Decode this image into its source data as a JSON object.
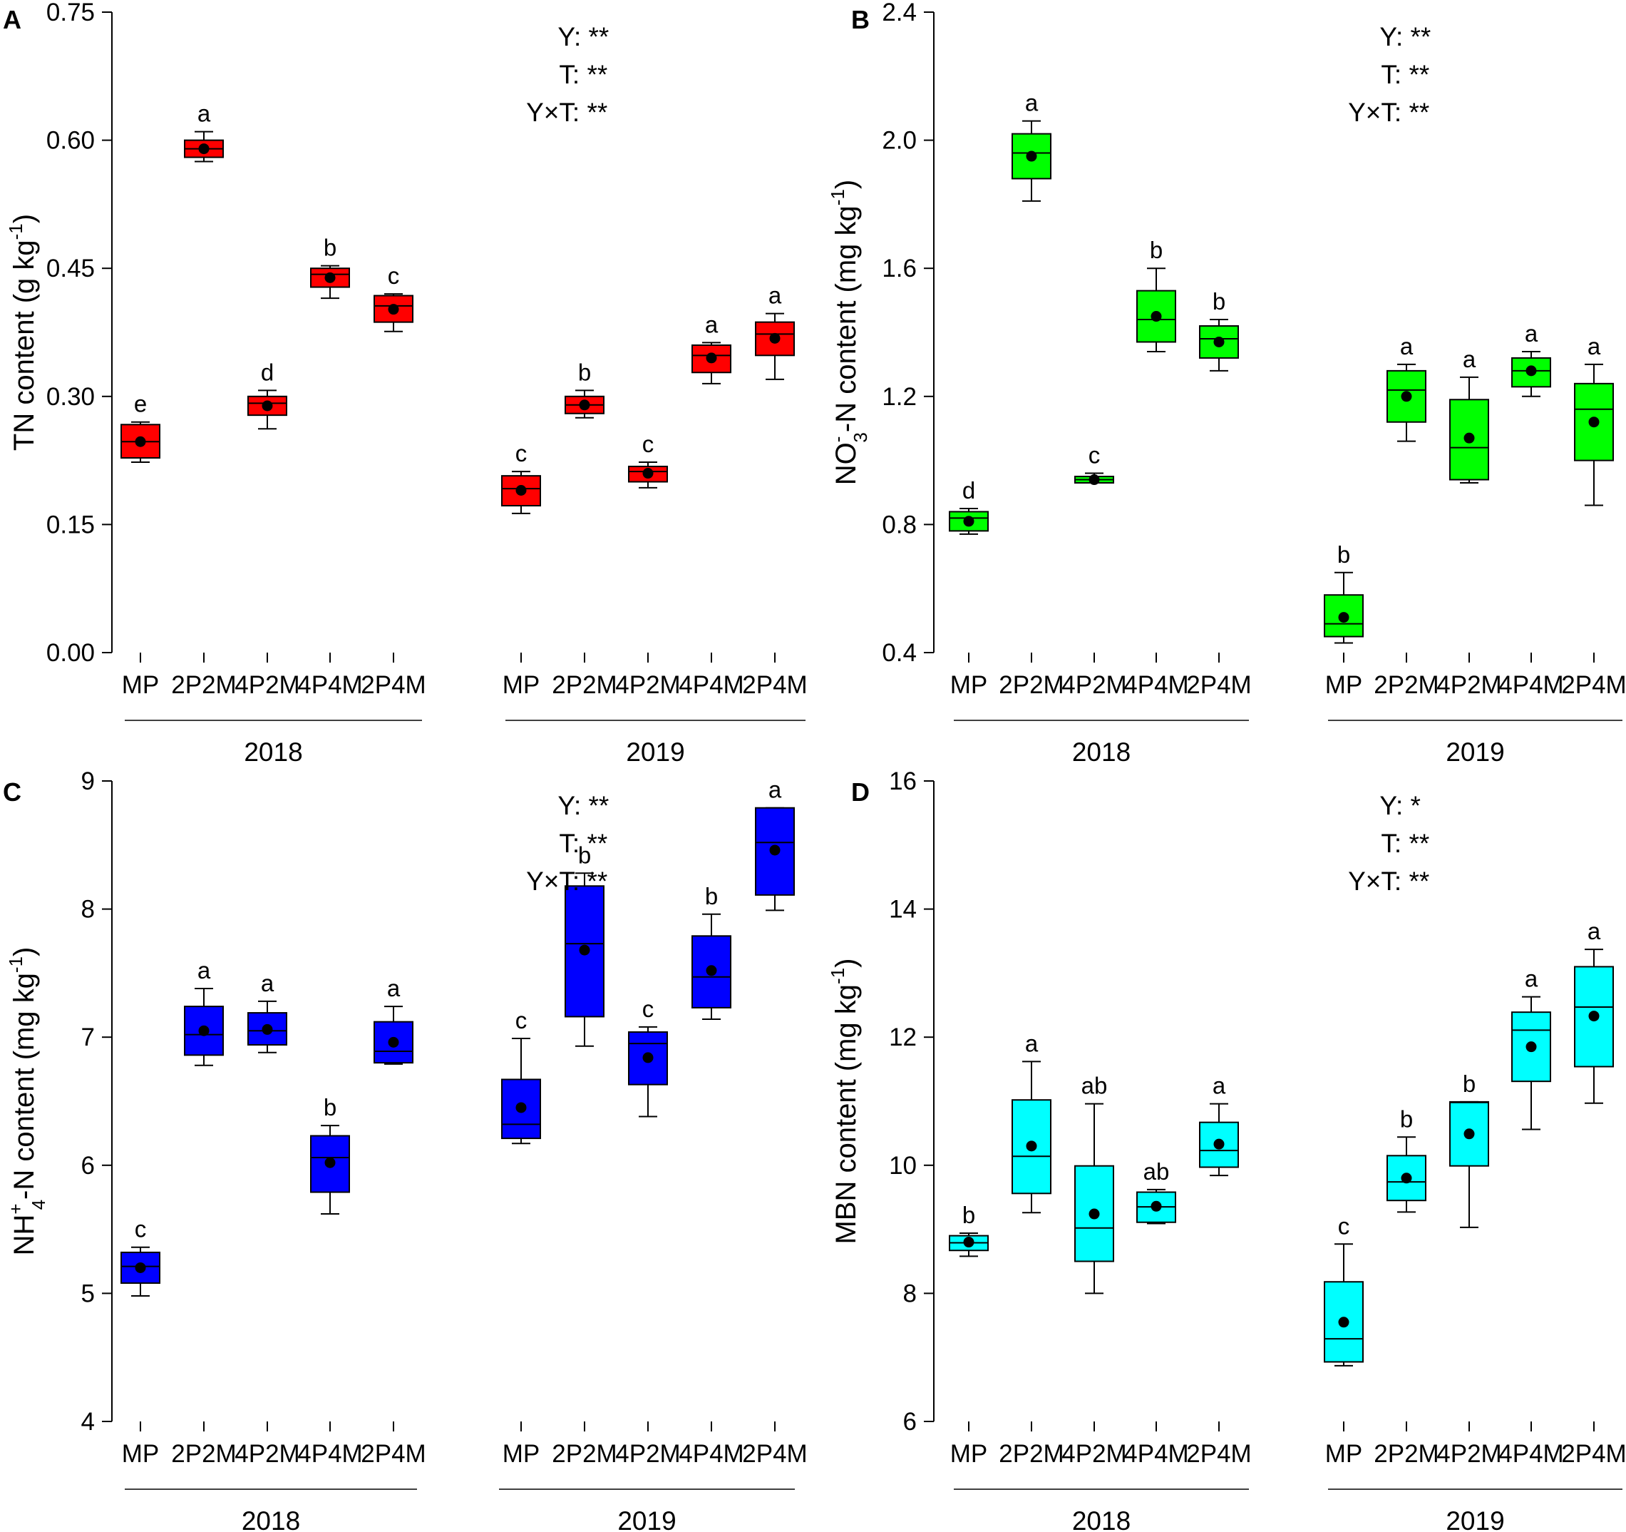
{
  "figure": {
    "colors": {
      "A": "#ff0000",
      "B": "#00ff00",
      "C": "#0000ff",
      "D": "#00ffff"
    },
    "marker_color": "#000000"
  },
  "chart_data": [
    {
      "panel": "A",
      "type": "box",
      "ylabel": "TN content (g kg-1)",
      "ylabel_parts": {
        "main": "TN content (g kg",
        "sup": "-1",
        "end": ")"
      },
      "ylim": [
        0,
        0.75
      ],
      "yticks": [
        0,
        0.15,
        0.3,
        0.45,
        0.6,
        0.75
      ],
      "ytick_labels": [
        "0.00",
        "0.15",
        "0.30",
        "0.45",
        "0.60",
        "0.75"
      ],
      "groups": [
        {
          "year": "2018",
          "categories": [
            "MP",
            "2P2M",
            "4P2M",
            "4P4M",
            "2P4M"
          ]
        },
        {
          "year": "2019",
          "categories": [
            "MP",
            "2P2M",
            "4P2M",
            "4P4M",
            "2P4M"
          ]
        }
      ],
      "boxes": [
        {
          "group": 0,
          "category": "MP",
          "whisker_low": 0.223,
          "q1": 0.228,
          "median": 0.247,
          "q3": 0.267,
          "whisker_high": 0.27,
          "mean": 0.247,
          "letter": "e"
        },
        {
          "group": 0,
          "category": "2P2M",
          "whisker_low": 0.575,
          "q1": 0.58,
          "median": 0.59,
          "q3": 0.6,
          "whisker_high": 0.61,
          "mean": 0.59,
          "letter": "a"
        },
        {
          "group": 0,
          "category": "4P2M",
          "whisker_low": 0.262,
          "q1": 0.278,
          "median": 0.292,
          "q3": 0.3,
          "whisker_high": 0.307,
          "mean": 0.289,
          "letter": "d"
        },
        {
          "group": 0,
          "category": "4P4M",
          "whisker_low": 0.415,
          "q1": 0.428,
          "median": 0.443,
          "q3": 0.45,
          "whisker_high": 0.453,
          "mean": 0.439,
          "letter": "b"
        },
        {
          "group": 0,
          "category": "2P4M",
          "whisker_low": 0.376,
          "q1": 0.387,
          "median": 0.406,
          "q3": 0.418,
          "whisker_high": 0.42,
          "mean": 0.402,
          "letter": "c"
        },
        {
          "group": 1,
          "category": "MP",
          "whisker_low": 0.163,
          "q1": 0.172,
          "median": 0.192,
          "q3": 0.207,
          "whisker_high": 0.212,
          "mean": 0.19,
          "letter": "c"
        },
        {
          "group": 1,
          "category": "2P2M",
          "whisker_low": 0.275,
          "q1": 0.28,
          "median": 0.29,
          "q3": 0.3,
          "whisker_high": 0.307,
          "mean": 0.29,
          "letter": "b"
        },
        {
          "group": 1,
          "category": "4P2M",
          "whisker_low": 0.193,
          "q1": 0.2,
          "median": 0.212,
          "q3": 0.218,
          "whisker_high": 0.223,
          "mean": 0.21,
          "letter": "c"
        },
        {
          "group": 1,
          "category": "4P4M",
          "whisker_low": 0.315,
          "q1": 0.328,
          "median": 0.348,
          "q3": 0.36,
          "whisker_high": 0.363,
          "mean": 0.345,
          "letter": "a"
        },
        {
          "group": 1,
          "category": "2P4M",
          "whisker_low": 0.32,
          "q1": 0.348,
          "median": 0.373,
          "q3": 0.387,
          "whisker_high": 0.397,
          "mean": 0.368,
          "letter": "a"
        }
      ],
      "stats": [
        "Y: **",
        "T: **",
        "Y×T: **"
      ]
    },
    {
      "panel": "B",
      "type": "box",
      "ylabel": "NO3--N content (mg kg-1)",
      "ylabel_parts": {
        "pre": "NO",
        "sub": "3",
        "sup": "-",
        "main": "-N content (mg kg",
        "sup2": "-1",
        "end": ")"
      },
      "ylim": [
        0.4,
        2.4
      ],
      "yticks": [
        0.4,
        0.8,
        1.2,
        1.6,
        2.0,
        2.4
      ],
      "ytick_labels": [
        "0.4",
        "0.8",
        "1.2",
        "1.6",
        "2.0",
        "2.4"
      ],
      "groups": [
        {
          "year": "2018",
          "categories": [
            "MP",
            "2P2M",
            "4P2M",
            "4P4M",
            "2P4M"
          ]
        },
        {
          "year": "2019",
          "categories": [
            "MP",
            "2P2M",
            "4P2M",
            "4P4M",
            "2P4M"
          ]
        }
      ],
      "boxes": [
        {
          "group": 0,
          "category": "MP",
          "whisker_low": 0.77,
          "q1": 0.78,
          "median": 0.82,
          "q3": 0.84,
          "whisker_high": 0.85,
          "mean": 0.81,
          "letter": "d"
        },
        {
          "group": 0,
          "category": "2P2M",
          "whisker_low": 1.81,
          "q1": 1.88,
          "median": 1.96,
          "q3": 2.02,
          "whisker_high": 2.06,
          "mean": 1.95,
          "letter": "a"
        },
        {
          "group": 0,
          "category": "4P2M",
          "whisker_low": 0.93,
          "q1": 0.93,
          "median": 0.94,
          "q3": 0.95,
          "whisker_high": 0.96,
          "mean": 0.94,
          "letter": "c"
        },
        {
          "group": 0,
          "category": "4P4M",
          "whisker_low": 1.34,
          "q1": 1.37,
          "median": 1.44,
          "q3": 1.53,
          "whisker_high": 1.6,
          "mean": 1.45,
          "letter": "b"
        },
        {
          "group": 0,
          "category": "2P4M",
          "whisker_low": 1.28,
          "q1": 1.32,
          "median": 1.38,
          "q3": 1.42,
          "whisker_high": 1.44,
          "mean": 1.37,
          "letter": "b"
        },
        {
          "group": 1,
          "category": "MP",
          "whisker_low": 0.43,
          "q1": 0.45,
          "median": 0.49,
          "q3": 0.58,
          "whisker_high": 0.65,
          "mean": 0.51,
          "letter": "b"
        },
        {
          "group": 1,
          "category": "2P2M",
          "whisker_low": 1.06,
          "q1": 1.12,
          "median": 1.22,
          "q3": 1.28,
          "whisker_high": 1.3,
          "mean": 1.2,
          "letter": "a"
        },
        {
          "group": 1,
          "category": "4P2M",
          "whisker_low": 0.93,
          "q1": 0.94,
          "median": 1.04,
          "q3": 1.19,
          "whisker_high": 1.26,
          "mean": 1.07,
          "letter": "a"
        },
        {
          "group": 1,
          "category": "4P4M",
          "whisker_low": 1.2,
          "q1": 1.23,
          "median": 1.28,
          "q3": 1.32,
          "whisker_high": 1.34,
          "mean": 1.28,
          "letter": "a"
        },
        {
          "group": 1,
          "category": "2P4M",
          "whisker_low": 0.86,
          "q1": 1.0,
          "median": 1.16,
          "q3": 1.24,
          "whisker_high": 1.3,
          "mean": 1.12,
          "letter": "a"
        }
      ],
      "stats": [
        "Y: **",
        "T: **",
        "Y×T: **"
      ]
    },
    {
      "panel": "C",
      "type": "box",
      "ylabel": "NH4+-N content (mg kg-1)",
      "ylabel_parts": {
        "pre": "NH",
        "sub": "4",
        "sup": "+",
        "main": "-N content (mg kg",
        "sup2": "-1",
        "end": ")"
      },
      "ylim": [
        4,
        9
      ],
      "yticks": [
        4,
        5,
        6,
        7,
        8,
        9
      ],
      "ytick_labels": [
        "4",
        "5",
        "6",
        "7",
        "8",
        "9"
      ],
      "groups": [
        {
          "year": "2018",
          "categories": [
            "MP",
            "2P2M",
            "4P2M",
            "4P4M",
            "2P4M"
          ]
        },
        {
          "year": "2019",
          "categories": [
            "MP",
            "2P2M",
            "4P2M",
            "4P4M",
            "2P4M"
          ]
        }
      ],
      "boxes": [
        {
          "group": 0,
          "category": "MP",
          "whisker_low": 4.98,
          "q1": 5.08,
          "median": 5.21,
          "q3": 5.32,
          "whisker_high": 5.36,
          "mean": 5.2,
          "letter": "c"
        },
        {
          "group": 0,
          "category": "2P2M",
          "whisker_low": 6.78,
          "q1": 6.86,
          "median": 7.02,
          "q3": 7.24,
          "whisker_high": 7.38,
          "mean": 7.05,
          "letter": "a"
        },
        {
          "group": 0,
          "category": "4P2M",
          "whisker_low": 6.88,
          "q1": 6.94,
          "median": 7.05,
          "q3": 7.19,
          "whisker_high": 7.28,
          "mean": 7.06,
          "letter": "a"
        },
        {
          "group": 0,
          "category": "4P4M",
          "whisker_low": 5.62,
          "q1": 5.79,
          "median": 6.06,
          "q3": 6.23,
          "whisker_high": 6.31,
          "mean": 6.02,
          "letter": "b"
        },
        {
          "group": 0,
          "category": "2P4M",
          "whisker_low": 6.79,
          "q1": 6.8,
          "median": 6.89,
          "q3": 7.12,
          "whisker_high": 7.24,
          "mean": 6.96,
          "letter": "a"
        },
        {
          "group": 1,
          "category": "MP",
          "whisker_low": 6.17,
          "q1": 6.21,
          "median": 6.32,
          "q3": 6.67,
          "whisker_high": 6.99,
          "mean": 6.45,
          "letter": "c"
        },
        {
          "group": 1,
          "category": "2P2M",
          "whisker_low": 6.93,
          "q1": 7.16,
          "median": 7.73,
          "q3": 8.18,
          "whisker_high": 8.28,
          "mean": 7.68,
          "letter": "b"
        },
        {
          "group": 1,
          "category": "4P2M",
          "whisker_low": 6.38,
          "q1": 6.63,
          "median": 6.95,
          "q3": 7.04,
          "whisker_high": 7.08,
          "mean": 6.84,
          "letter": "c"
        },
        {
          "group": 1,
          "category": "4P4M",
          "whisker_low": 7.14,
          "q1": 7.23,
          "median": 7.47,
          "q3": 7.79,
          "whisker_high": 7.96,
          "mean": 7.52,
          "letter": "b"
        },
        {
          "group": 1,
          "category": "2P4M",
          "whisker_low": 7.99,
          "q1": 8.11,
          "median": 8.52,
          "q3": 8.79,
          "whisker_high": 8.79,
          "mean": 8.46,
          "letter": "a"
        }
      ],
      "stats": [
        "Y: **",
        "T: **",
        "Y×T: **"
      ]
    },
    {
      "panel": "D",
      "type": "box",
      "ylabel": "MBN content (mg kg-1)",
      "ylabel_parts": {
        "main": "MBN content (mg kg",
        "sup": "-1",
        "end": ")"
      },
      "ylim": [
        6,
        16
      ],
      "yticks": [
        6,
        8,
        10,
        12,
        14,
        16
      ],
      "ytick_labels": [
        "6",
        "8",
        "10",
        "12",
        "14",
        "16"
      ],
      "groups": [
        {
          "year": "2018",
          "categories": [
            "MP",
            "2P2M",
            "4P2M",
            "4P4M",
            "2P4M"
          ]
        },
        {
          "year": "2019",
          "categories": [
            "MP",
            "2P2M",
            "4P2M",
            "4P4M",
            "2P4M"
          ]
        }
      ],
      "boxes": [
        {
          "group": 0,
          "category": "MP",
          "whisker_low": 8.58,
          "q1": 8.67,
          "median": 8.79,
          "q3": 8.9,
          "whisker_high": 8.94,
          "mean": 8.8,
          "letter": "b"
        },
        {
          "group": 0,
          "category": "2P2M",
          "whisker_low": 9.26,
          "q1": 9.56,
          "median": 10.14,
          "q3": 11.02,
          "whisker_high": 11.62,
          "mean": 10.3,
          "letter": "a"
        },
        {
          "group": 0,
          "category": "4P2M",
          "whisker_low": 8.0,
          "q1": 8.5,
          "median": 9.02,
          "q3": 9.99,
          "whisker_high": 10.96,
          "mean": 9.24,
          "letter": "ab"
        },
        {
          "group": 0,
          "category": "4P4M",
          "whisker_low": 9.09,
          "q1": 9.11,
          "median": 9.35,
          "q3": 9.58,
          "whisker_high": 9.62,
          "mean": 9.36,
          "letter": "ab"
        },
        {
          "group": 0,
          "category": "2P4M",
          "whisker_low": 9.84,
          "q1": 9.97,
          "median": 10.23,
          "q3": 10.67,
          "whisker_high": 10.96,
          "mean": 10.33,
          "letter": "a"
        },
        {
          "group": 1,
          "category": "MP",
          "whisker_low": 6.87,
          "q1": 6.93,
          "median": 7.29,
          "q3": 8.18,
          "whisker_high": 8.77,
          "mean": 7.55,
          "letter": "c"
        },
        {
          "group": 1,
          "category": "2P2M",
          "whisker_low": 9.27,
          "q1": 9.45,
          "median": 9.74,
          "q3": 10.15,
          "whisker_high": 10.44,
          "mean": 9.8,
          "letter": "b"
        },
        {
          "group": 1,
          "category": "4P2M",
          "whisker_low": 9.03,
          "q1": 9.99,
          "median": 10.98,
          "q3": 10.99,
          "whisker_high": 10.99,
          "mean": 10.49,
          "letter": "b"
        },
        {
          "group": 1,
          "category": "4P4M",
          "whisker_low": 10.56,
          "q1": 11.31,
          "median": 12.11,
          "q3": 12.39,
          "whisker_high": 12.63,
          "mean": 11.85,
          "letter": "a"
        },
        {
          "group": 1,
          "category": "2P4M",
          "whisker_low": 10.97,
          "q1": 11.54,
          "median": 12.47,
          "q3": 13.1,
          "whisker_high": 13.37,
          "mean": 12.33,
          "letter": "a"
        }
      ],
      "stats": [
        "Y: *",
        "T: **",
        "Y×T: **"
      ]
    }
  ]
}
